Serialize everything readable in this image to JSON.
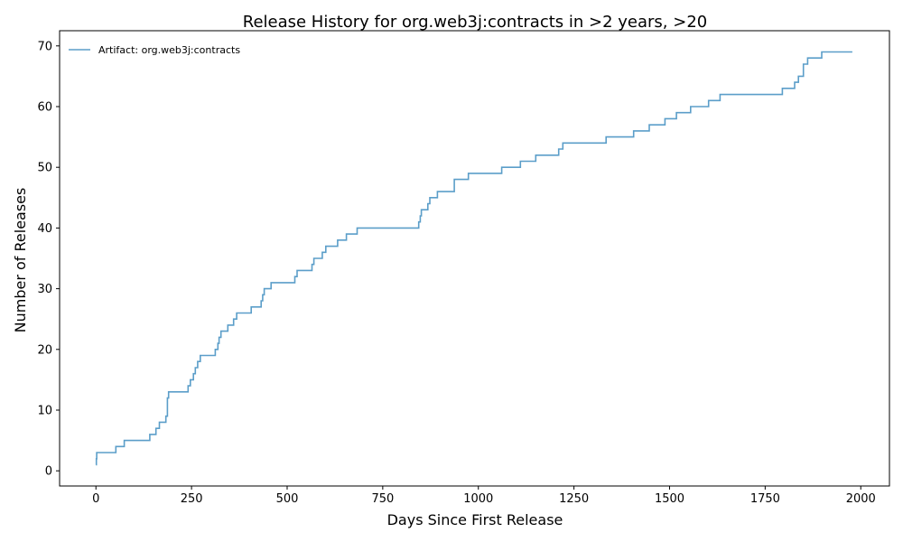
{
  "chart_data": {
    "type": "line",
    "title": "Release History for org.web3j:contracts in >2 years, >20",
    "xlabel": "Days Since First Release",
    "ylabel": "Number of Releases",
    "xlim": [
      -95,
      2075
    ],
    "ylim": [
      -2.5,
      72.5
    ],
    "xticks": [
      0,
      250,
      500,
      750,
      1000,
      1250,
      1500,
      1750,
      2000
    ],
    "yticks": [
      0,
      10,
      20,
      30,
      40,
      50,
      60,
      70
    ],
    "grid": false,
    "legend_position": "top-left",
    "series": [
      {
        "name": "Artifact: org.web3j:contracts",
        "color": "#5b9ec9",
        "step": "post",
        "x": [
          0,
          1,
          2,
          52,
          74,
          141,
          157,
          166,
          183,
          187,
          190,
          241,
          247,
          255,
          260,
          266,
          273,
          312,
          319,
          322,
          327,
          345,
          360,
          368,
          406,
          432,
          436,
          440,
          458,
          520,
          522,
          526,
          565,
          570,
          575,
          592,
          601,
          632,
          655,
          683,
          844,
          848,
          851,
          868,
          873,
          893,
          937,
          974,
          1061,
          1110,
          1150,
          1210,
          1221,
          1334,
          1406,
          1447,
          1488,
          1518,
          1555,
          1602,
          1632,
          1795,
          1827,
          1837,
          1850,
          1861,
          1873,
          1898,
          1978
        ],
        "y": [
          1,
          2,
          3,
          4,
          5,
          6,
          7,
          8,
          9,
          12,
          13,
          14,
          15,
          16,
          17,
          18,
          19,
          20,
          21,
          22,
          23,
          24,
          25,
          26,
          27,
          28,
          29,
          30,
          31,
          32,
          32,
          33,
          34,
          35,
          35,
          36,
          37,
          38,
          39,
          40,
          41,
          42,
          43,
          44,
          45,
          46,
          48,
          49,
          50,
          51,
          52,
          53,
          54,
          55,
          56,
          57,
          58,
          59,
          60,
          61,
          62,
          63,
          64,
          65,
          67,
          68,
          68,
          69,
          69
        ]
      }
    ]
  }
}
